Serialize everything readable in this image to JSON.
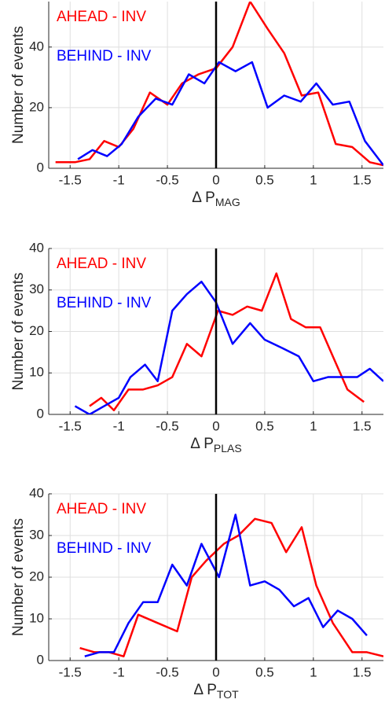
{
  "chart_data": [
    {
      "type": "line",
      "xlabel": "Δ P",
      "xlabel_subscript": "MAG",
      "ylabel": "Number of events",
      "xlim": [
        -1.72,
        1.72
      ],
      "xticks": [
        -1.5,
        -1,
        -0.5,
        0,
        0.5,
        1,
        1.5
      ],
      "ylim": [
        0,
        55
      ],
      "yticks": [
        0,
        20,
        40
      ],
      "grid": true,
      "vline": 0,
      "series": [
        {
          "name": "AHEAD - INV",
          "color": "#ff0000",
          "x": [
            -1.65,
            -1.45,
            -1.3,
            -1.15,
            -1.0,
            -0.85,
            -0.68,
            -0.5,
            -0.35,
            -0.18,
            0.0,
            0.17,
            0.35,
            0.53,
            0.7,
            0.88,
            1.05,
            1.23,
            1.4,
            1.58,
            1.72
          ],
          "values": [
            2,
            2,
            3,
            9,
            7,
            13,
            25,
            21,
            28,
            31,
            33,
            40,
            55,
            46,
            38,
            24,
            25,
            8,
            7,
            2,
            1
          ]
        },
        {
          "name": "BEHIND - INV",
          "color": "#0000ff",
          "x": [
            -1.42,
            -1.27,
            -1.12,
            -0.97,
            -0.8,
            -0.62,
            -0.45,
            -0.28,
            -0.12,
            0.03,
            0.2,
            0.37,
            0.53,
            0.7,
            0.87,
            1.03,
            1.2,
            1.37,
            1.53,
            1.72
          ],
          "values": [
            3,
            6,
            4,
            8,
            17,
            23,
            21,
            31,
            28,
            35,
            32,
            35,
            20,
            24,
            22,
            28,
            21,
            22,
            9,
            1
          ]
        }
      ]
    },
    {
      "type": "line",
      "xlabel": "Δ P",
      "xlabel_subscript": "PLAS",
      "ylabel": "Number of events",
      "xlim": [
        -1.72,
        1.72
      ],
      "xticks": [
        -1.5,
        -1,
        -0.5,
        0,
        0.5,
        1,
        1.5
      ],
      "ylim": [
        0,
        40
      ],
      "yticks": [
        0,
        10,
        20,
        30,
        40
      ],
      "grid": true,
      "vline": 0,
      "series": [
        {
          "name": "AHEAD - INV",
          "color": "#ff0000",
          "x": [
            -1.3,
            -1.18,
            -1.05,
            -0.9,
            -0.75,
            -0.6,
            -0.45,
            -0.3,
            -0.15,
            0.02,
            0.17,
            0.32,
            0.47,
            0.62,
            0.77,
            0.92,
            1.07,
            1.2,
            1.35,
            1.52
          ],
          "values": [
            2,
            4,
            1,
            6,
            6,
            7,
            9,
            17,
            14,
            25,
            24,
            26,
            25,
            34,
            23,
            21,
            21,
            14,
            6,
            3
          ]
        },
        {
          "name": "BEHIND - INV",
          "color": "#0000ff",
          "x": [
            -1.45,
            -1.3,
            -1.15,
            -1.0,
            -0.88,
            -0.73,
            -0.6,
            -0.45,
            -0.3,
            -0.15,
            0.0,
            0.17,
            0.35,
            0.5,
            0.68,
            0.85,
            1.0,
            1.15,
            1.3,
            1.45,
            1.58,
            1.72
          ],
          "values": [
            2,
            0,
            2,
            4,
            9,
            12,
            8,
            25,
            29,
            32,
            27,
            17,
            22,
            18,
            16,
            14,
            8,
            9,
            9,
            9,
            11,
            8
          ]
        }
      ]
    },
    {
      "type": "line",
      "xlabel": "Δ P",
      "xlabel_subscript": "TOT",
      "ylabel": "Number of events",
      "xlim": [
        -1.72,
        1.72
      ],
      "xticks": [
        -1.5,
        -1,
        -0.5,
        0,
        0.5,
        1,
        1.5
      ],
      "ylim": [
        0,
        40
      ],
      "yticks": [
        0,
        10,
        20,
        30,
        40
      ],
      "grid": true,
      "vline": 0,
      "series": [
        {
          "name": "AHEAD - INV",
          "color": "#ff0000",
          "x": [
            -1.4,
            -1.25,
            -1.1,
            -0.95,
            -0.8,
            -0.6,
            -0.4,
            -0.25,
            -0.1,
            0.08,
            0.23,
            0.4,
            0.57,
            0.72,
            0.88,
            1.03,
            1.2,
            1.4,
            1.55,
            1.72
          ],
          "values": [
            3,
            2,
            2,
            1,
            11,
            9,
            7,
            20,
            24,
            28,
            30,
            34,
            33,
            26,
            32,
            18,
            9,
            2,
            2,
            1
          ]
        },
        {
          "name": "BEHIND - INV",
          "color": "#0000ff",
          "x": [
            -1.35,
            -1.2,
            -1.05,
            -0.9,
            -0.75,
            -0.6,
            -0.45,
            -0.3,
            -0.15,
            0.03,
            0.2,
            0.35,
            0.5,
            0.65,
            0.8,
            0.95,
            1.1,
            1.25,
            1.4,
            1.55
          ],
          "values": [
            1,
            2,
            2,
            9,
            14,
            14,
            23,
            18,
            28,
            20,
            35,
            18,
            19,
            17,
            13,
            15,
            8,
            12,
            10,
            6
          ]
        }
      ]
    }
  ]
}
